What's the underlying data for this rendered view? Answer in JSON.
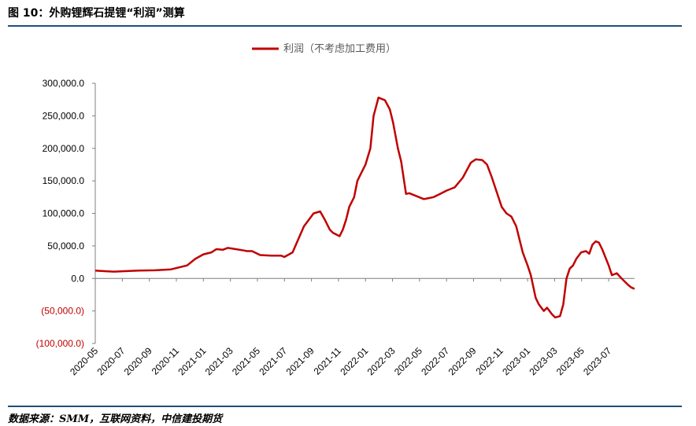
{
  "header": {
    "title": "图 10：外购锂辉石提锂“利润”测算"
  },
  "footer": {
    "source": "数据来源：SMM，互联网资料，中信建投期货"
  },
  "chart_data": {
    "type": "line",
    "legend": {
      "position": "top-center"
    },
    "ylim": [
      -100000,
      300000
    ],
    "ytick_step": 50000,
    "y_ticks": [
      "300,000.0",
      "250,000.0",
      "200,000.0",
      "150,000.0",
      "100,000.0",
      "50,000.0",
      "0.0",
      "(50,000.0)",
      "(100,000.0)"
    ],
    "negative_tick_color": "#c00000",
    "x_ticks": [
      "2020-05",
      "2020-07",
      "2020-09",
      "2020-11",
      "2021-01",
      "2021-03",
      "2021-05",
      "2021-07",
      "2021-09",
      "2021-11",
      "2022-01",
      "2022-03",
      "2022-05",
      "2022-07",
      "2022-09",
      "2022-11",
      "2023-01",
      "2023-03",
      "2023-05",
      "2023-07"
    ],
    "xlim": [
      2020.333,
      2023.66
    ],
    "series": [
      {
        "name": "利润（不考虑加工费用）",
        "color": "#c00000",
        "x": [
          2020.333,
          2020.4,
          2020.45,
          2020.5,
          2020.6,
          2020.7,
          2020.8,
          2020.9,
          2020.95,
          2021.0,
          2021.05,
          2021.08,
          2021.12,
          2021.15,
          2021.2,
          2021.25,
          2021.27,
          2021.3,
          2021.35,
          2021.42,
          2021.48,
          2021.5,
          2021.55,
          2021.62,
          2021.68,
          2021.72,
          2021.75,
          2021.78,
          2021.8,
          2021.84,
          2021.86,
          2021.88,
          2021.9,
          2021.93,
          2021.95,
          2021.97,
          2022.0,
          2022.03,
          2022.05,
          2022.08,
          2022.12,
          2022.15,
          2022.17,
          2022.2,
          2022.22,
          2022.25,
          2022.27,
          2022.3,
          2022.33,
          2022.36,
          2022.38,
          2022.42,
          2022.46,
          2022.5,
          2022.55,
          2022.6,
          2022.65,
          2022.68,
          2022.72,
          2022.75,
          2022.78,
          2022.8,
          2022.84,
          2022.87,
          2022.9,
          2022.93,
          2022.95,
          2022.97,
          2023.0,
          2023.02,
          2023.05,
          2023.07,
          2023.1,
          2023.12,
          2023.15,
          2023.17,
          2023.2,
          2023.22,
          2023.24,
          2023.26,
          2023.28,
          2023.3,
          2023.33,
          2023.36,
          2023.38,
          2023.4,
          2023.42,
          2023.44,
          2023.46,
          2023.5,
          2023.52,
          2023.55,
          2023.58,
          2023.6,
          2023.62,
          2023.64,
          2023.66
        ],
        "y": [
          12000,
          11000,
          10500,
          11000,
          12000,
          12500,
          14000,
          20000,
          30000,
          37000,
          40000,
          45000,
          44000,
          47000,
          45000,
          43000,
          42000,
          42000,
          36000,
          35000,
          35000,
          33000,
          40000,
          80000,
          100000,
          103000,
          90000,
          75000,
          70000,
          65000,
          75000,
          90000,
          110000,
          125000,
          150000,
          160000,
          175000,
          200000,
          250000,
          278000,
          274000,
          260000,
          240000,
          200000,
          180000,
          130000,
          131000,
          128000,
          125000,
          122000,
          123000,
          125000,
          130000,
          135000,
          140000,
          155000,
          178000,
          183000,
          182000,
          175000,
          155000,
          140000,
          110000,
          100000,
          95000,
          80000,
          60000,
          40000,
          20000,
          5000,
          -30000,
          -40000,
          -50000,
          -45000,
          -55000,
          -60000,
          -58000,
          -40000,
          0,
          15000,
          20000,
          30000,
          40000,
          42000,
          38000,
          52000,
          57000,
          55000,
          45000,
          20000,
          5000,
          8000,
          0,
          -5000,
          -10000,
          -14000,
          -16000
        ]
      }
    ]
  }
}
